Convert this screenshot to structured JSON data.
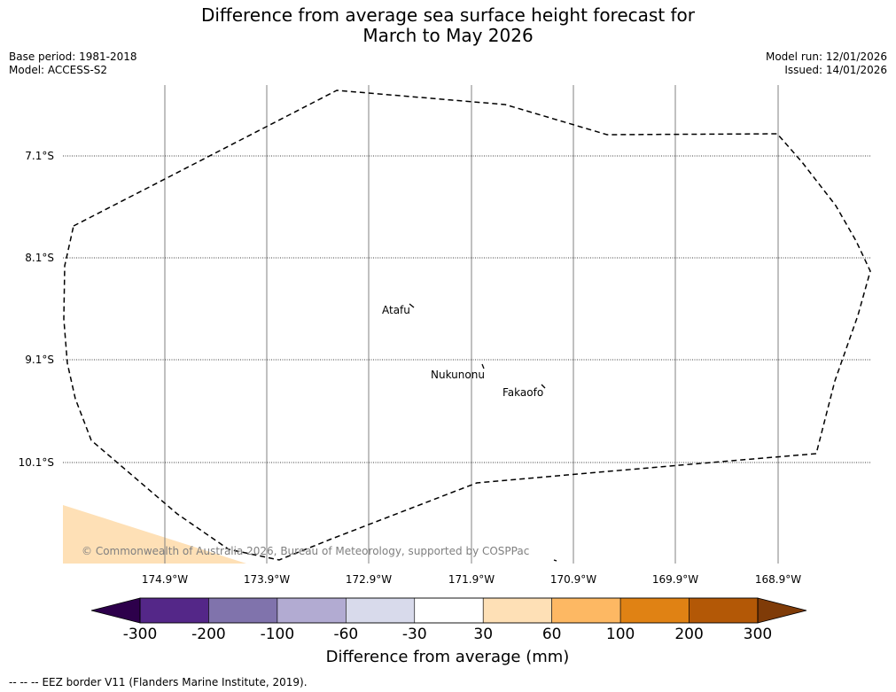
{
  "title": {
    "line1": "Difference from average sea surface height forecast for",
    "line2": "March to May 2026"
  },
  "meta_left": {
    "base_period": "Base period: 1981-2018",
    "model": "Model: ACCESS-S2"
  },
  "meta_right": {
    "model_run": "Model run: 12/01/2026",
    "issued": "Issued: 14/01/2026"
  },
  "map": {
    "lat_labels": [
      "7.1°S",
      "8.1°S",
      "9.1°S",
      "10.1°S"
    ],
    "lon_labels": [
      "174.9°W",
      "173.9°W",
      "172.9°W",
      "171.9°W",
      "170.9°W",
      "169.9°W",
      "168.9°W"
    ],
    "places": [
      {
        "name": "Atafu",
        "lon": -172.5,
        "lat": -8.55
      },
      {
        "name": "Nukunonu",
        "lon": -171.8,
        "lat": -9.17
      },
      {
        "name": "Fakaofo",
        "lon": -171.2,
        "lat": -9.37
      }
    ],
    "copyright": "© Commonwealth of Australia 2026, Bureau of Meteorology, supported by COSPPac",
    "eez_color": "#000000",
    "anomaly_patch_color": "#fee0b6"
  },
  "colorbar": {
    "title": "Difference from average (mm)",
    "tick_labels": [
      "-300",
      "-200",
      "-100",
      "-60",
      "-30",
      "30",
      "60",
      "100",
      "200",
      "300"
    ],
    "colors": [
      "#2d004b",
      "#542788",
      "#8073ac",
      "#b2abd2",
      "#d8daeb",
      "#ffffff",
      "#fee0b6",
      "#fdb863",
      "#e08214",
      "#b35806",
      "#7f3b08"
    ]
  },
  "footer": {
    "legend_symbol": "--  --  --",
    "text": "EEZ border V11 (Flanders Marine Institute, 2019)."
  }
}
